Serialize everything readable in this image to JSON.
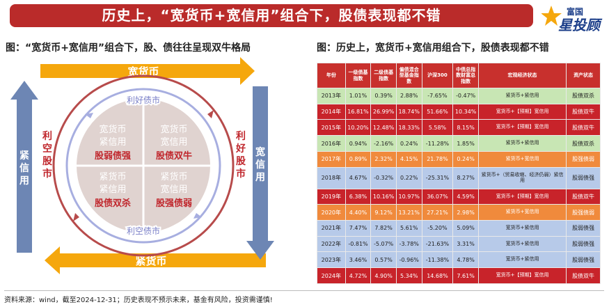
{
  "banner": {
    "title": "历史上，“宽货币+宽信用”组合下，股债表现都不错"
  },
  "logo": {
    "small": "富国",
    "large": "星投顾"
  },
  "left": {
    "title": "图：“宽货币+宽信用”组合下，股、债往往呈现双牛格局",
    "top_arrow": "宽货币",
    "bottom_arrow": "紧货币",
    "left_arrow": "紧信用",
    "right_arrow": "宽信用",
    "inner_left": "利空股市",
    "inner_right": "利好股市",
    "inner_top": "利好债市",
    "inner_bottom": "利空债市",
    "q1": {
      "l1": "宽货币",
      "l2": "紧信用",
      "l3": "股弱债强"
    },
    "q2": {
      "l1": "宽货币",
      "l2": "宽信用",
      "l3": "股债双牛"
    },
    "q3": {
      "l1": "紧货币",
      "l2": "紧信用",
      "l3": "股债双杀"
    },
    "q4": {
      "l1": "紧货币",
      "l2": "宽信用",
      "l3": "股强债弱"
    },
    "colors": {
      "orange": "#f5a70d",
      "blue": "#6d86b4",
      "red_text": "#c0272d",
      "circle_fill": "#e0d3d0"
    }
  },
  "right": {
    "title": "图：历史上，宽货币+宽信用组合下，股债表现都不错",
    "headers": [
      "年份",
      "一级债基指数",
      "二级债基指数",
      "偏债混合型基金指数",
      "沪深300",
      "中债总指数财富总指数",
      "宏观经济状态",
      "资产状态"
    ],
    "rows": [
      {
        "c": "c-green",
        "cells": [
          "2013年",
          "1.01%",
          "0.39%",
          "2.88%",
          "-7.65%",
          "-0.47%",
          "紧货币+紧信用",
          "股债双杀"
        ]
      },
      {
        "c": "c-red",
        "cells": [
          "2014年",
          "16.81%",
          "26.99%",
          "18.74%",
          "51.66%",
          "10.34%",
          "宽货币+【预期】宽信用",
          "股债双牛"
        ]
      },
      {
        "c": "c-red",
        "cells": [
          "2015年",
          "10.20%",
          "12.48%",
          "18.33%",
          "5.58%",
          "8.15%",
          "宽货币+【预期】宽信用",
          "股债双牛"
        ]
      },
      {
        "c": "c-green",
        "cells": [
          "2016年",
          "0.94%",
          "-2.16%",
          "0.24%",
          "-11.28%",
          "1.85%",
          "紧货币+紧信用",
          "股债双杀"
        ]
      },
      {
        "c": "c-orange",
        "cells": [
          "2017年",
          "0.89%",
          "2.32%",
          "4.15%",
          "21.78%",
          "0.24%",
          "紧货币+宽信用",
          "股强债弱"
        ]
      },
      {
        "c": "c-blue",
        "cells": [
          "2018年",
          "4.67%",
          "-0.32%",
          "0.22%",
          "-25.31%",
          "8.27%",
          "紧货币+（贸易收缩、经济仍弱）紧信用",
          "股弱债强"
        ]
      },
      {
        "c": "c-red",
        "cells": [
          "2019年",
          "6.38%",
          "10.16%",
          "10.97%",
          "36.07%",
          "4.59%",
          "宽货币+【预期】宽信用",
          "股债双牛"
        ]
      },
      {
        "c": "c-orange",
        "cells": [
          "2020年",
          "4.40%",
          "9.12%",
          "13.21%",
          "27.21%",
          "2.98%",
          "紧货币+宽信用",
          "股强债弱"
        ]
      },
      {
        "c": "c-blue",
        "cells": [
          "2021年",
          "7.47%",
          "7.82%",
          "5.61%",
          "-5.20%",
          "5.09%",
          "宽货币+紧信用",
          "股弱债强"
        ]
      },
      {
        "c": "c-blue",
        "cells": [
          "2022年",
          "-0.81%",
          "-5.07%",
          "-3.78%",
          "-21.63%",
          "3.31%",
          "宽货币+紧信用",
          "股弱债强"
        ]
      },
      {
        "c": "c-blue",
        "cells": [
          "2023年",
          "3.46%",
          "0.57%",
          "-0.96%",
          "-11.38%",
          "4.78%",
          "宽货币+紧信用",
          "股弱债强"
        ]
      },
      {
        "c": "c-red",
        "cells": [
          "2024年",
          "4.72%",
          "4.90%",
          "5.34%",
          "14.68%",
          "7.61%",
          "宽货币+【预期】宽信用",
          "股债双牛"
        ]
      }
    ]
  },
  "footer": {
    "text": "资料来源：wind，截至2024-12-31；历史表现不预示未来，基金有风险，投资需谨慎!"
  }
}
